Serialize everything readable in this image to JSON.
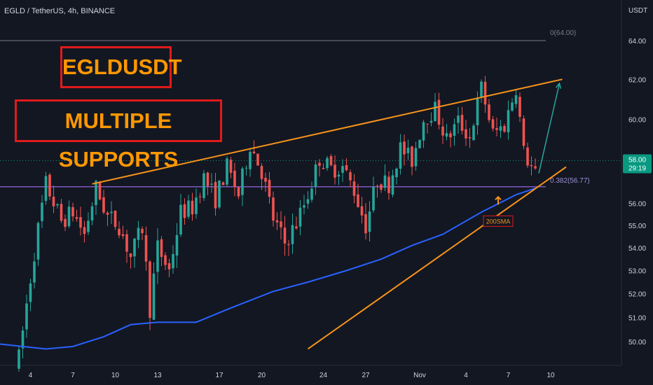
{
  "header": {
    "symbol_line": "EGLD / TetherUS, 4h, BINANCE",
    "currency": "USDT"
  },
  "annotations": {
    "title": "EGLDUSDT",
    "subtitle": "MULTIPLE SUPPORTS",
    "sma_label": "200SMA",
    "fib_top": "0(64.00)",
    "fib_382": "0.382(56.77)"
  },
  "price_badge": {
    "price": "58.00",
    "countdown": "29:19"
  },
  "colors": {
    "background": "#131722",
    "up": "#26a69a",
    "down": "#ef5350",
    "trendline": "#f7931a",
    "sma": "#2962ff",
    "fib_382": "#7e57c2",
    "fib_0": "#787b86",
    "arrow": "#26a69a",
    "badge": "#089981"
  },
  "chart_data": {
    "type": "candlestick",
    "y_axis": {
      "ticks": [
        64,
        62,
        60,
        58,
        56,
        55,
        54,
        53,
        52,
        51,
        50
      ],
      "tick_labels": [
        "64.00",
        "62.00",
        "60.00",
        "58.00",
        "56.00",
        "55.00",
        "54.00",
        "53.00",
        "52.00",
        "51.00",
        "50.00"
      ],
      "scale": "log"
    },
    "x_axis": {
      "labels": [
        "4",
        "7",
        "10",
        "13",
        "17",
        "20",
        "24",
        "27",
        "Nov",
        "4",
        "7",
        "10"
      ]
    },
    "levels": [
      {
        "name": "fib_0",
        "price": 64.0
      },
      {
        "name": "fib_0.382",
        "price": 56.77
      }
    ],
    "last_price": 58.0,
    "close_path": [
      [
        0,
        49.3
      ],
      [
        4,
        53.8
      ],
      [
        7,
        56.9
      ],
      [
        11,
        55.2
      ],
      [
        14,
        55.6
      ],
      [
        17,
        54.6
      ],
      [
        20,
        56.7
      ],
      [
        23,
        55.4
      ],
      [
        26,
        55.0
      ],
      [
        29,
        53.6
      ],
      [
        32,
        54.9
      ],
      [
        34,
        51.4
      ],
      [
        36,
        54.0
      ],
      [
        39,
        53.0
      ],
      [
        42,
        55.6
      ],
      [
        45,
        55.8
      ],
      [
        48,
        57.2
      ],
      [
        51,
        56.2
      ],
      [
        54,
        57.7
      ],
      [
        57,
        56.4
      ],
      [
        60,
        58.8
      ],
      [
        63,
        57.5
      ],
      [
        66,
        55.3
      ],
      [
        69,
        54.2
      ],
      [
        72,
        55.1
      ],
      [
        75,
        56.4
      ],
      [
        78,
        58.1
      ],
      [
        81,
        57.6
      ],
      [
        84,
        57.7
      ],
      [
        87,
        56.6
      ],
      [
        90,
        55.0
      ],
      [
        93,
        57.1
      ],
      [
        96,
        56.9
      ],
      [
        99,
        58.6
      ],
      [
        102,
        58.0
      ],
      [
        105,
        60.0
      ],
      [
        108,
        60.5
      ],
      [
        111,
        59.0
      ],
      [
        114,
        59.9
      ],
      [
        117,
        59.1
      ],
      [
        120,
        61.6
      ],
      [
        123,
        59.3
      ],
      [
        126,
        59.7
      ],
      [
        129,
        61.6
      ],
      [
        131,
        58.4
      ],
      [
        134,
        57.3
      ]
    ],
    "trendlines": [
      {
        "name": "upper",
        "points": [
          [
            19,
            56.9
          ],
          [
            141,
            62.0
          ]
        ]
      },
      {
        "name": "lower",
        "points": [
          [
            75,
            49.7
          ],
          [
            142,
            57.7
          ]
        ]
      }
    ],
    "sma_200": [
      [
        0,
        49.9
      ],
      [
        7,
        49.7
      ],
      [
        14,
        49.8
      ],
      [
        22,
        50.2
      ],
      [
        29,
        50.7
      ],
      [
        36,
        50.8
      ],
      [
        46,
        50.8
      ],
      [
        55,
        51.4
      ],
      [
        66,
        52.1
      ],
      [
        75,
        52.5
      ],
      [
        85,
        53.0
      ],
      [
        94,
        53.5
      ],
      [
        102,
        54.1
      ],
      [
        110,
        54.6
      ],
      [
        120,
        55.6
      ],
      [
        129,
        56.4
      ],
      [
        134,
        56.7
      ]
    ]
  }
}
